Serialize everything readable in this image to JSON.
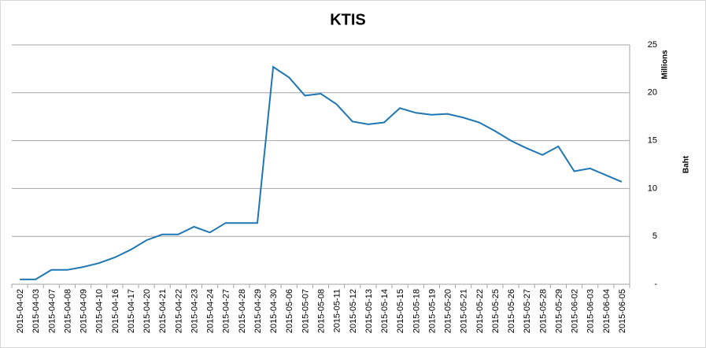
{
  "chart_data": {
    "type": "line",
    "title": "KTIS",
    "y_label_unit": "Millions",
    "y_label": "Baht",
    "categories": [
      "2015-04-02",
      "2015-04-03",
      "2015-04-07",
      "2015-04-08",
      "2015-04-09",
      "2015-04-10",
      "2015-04-16",
      "2015-04-17",
      "2015-04-20",
      "2015-04-21",
      "2015-04-22",
      "2015-04-23",
      "2015-04-24",
      "2015-04-27",
      "2015-04-28",
      "2015-04-29",
      "2015-04-30",
      "2015-05-06",
      "2015-05-07",
      "2015-05-08",
      "2015-05-11",
      "2015-05-12",
      "2015-05-13",
      "2015-05-14",
      "2015-05-15",
      "2015-05-18",
      "2015-05-19",
      "2015-05-20",
      "2015-05-21",
      "2015-05-22",
      "2015-05-25",
      "2015-05-26",
      "2015-05-27",
      "2015-05-28",
      "2015-05-29",
      "2015-06-02",
      "2015-06-03",
      "2015-06-04",
      "2015-06-05"
    ],
    "values": [
      0.5,
      0.5,
      1.5,
      1.5,
      1.8,
      2.2,
      2.8,
      3.6,
      4.6,
      5.2,
      5.2,
      6.0,
      5.4,
      6.4,
      6.4,
      6.4,
      22.7,
      21.6,
      19.7,
      19.9,
      18.8,
      17.0,
      16.7,
      16.9,
      18.4,
      17.9,
      17.7,
      17.8,
      17.4,
      16.9,
      16.0,
      15.0,
      14.2,
      13.5,
      14.4,
      11.8,
      12.1,
      11.4,
      10.7
    ],
    "color": "#1f77b4",
    "ylim": [
      0,
      25
    ],
    "yticks": [
      {
        "value": 0,
        "label": "-"
      },
      5,
      10,
      15,
      20,
      25
    ],
    "grid": true,
    "y_axis_side": "right"
  }
}
